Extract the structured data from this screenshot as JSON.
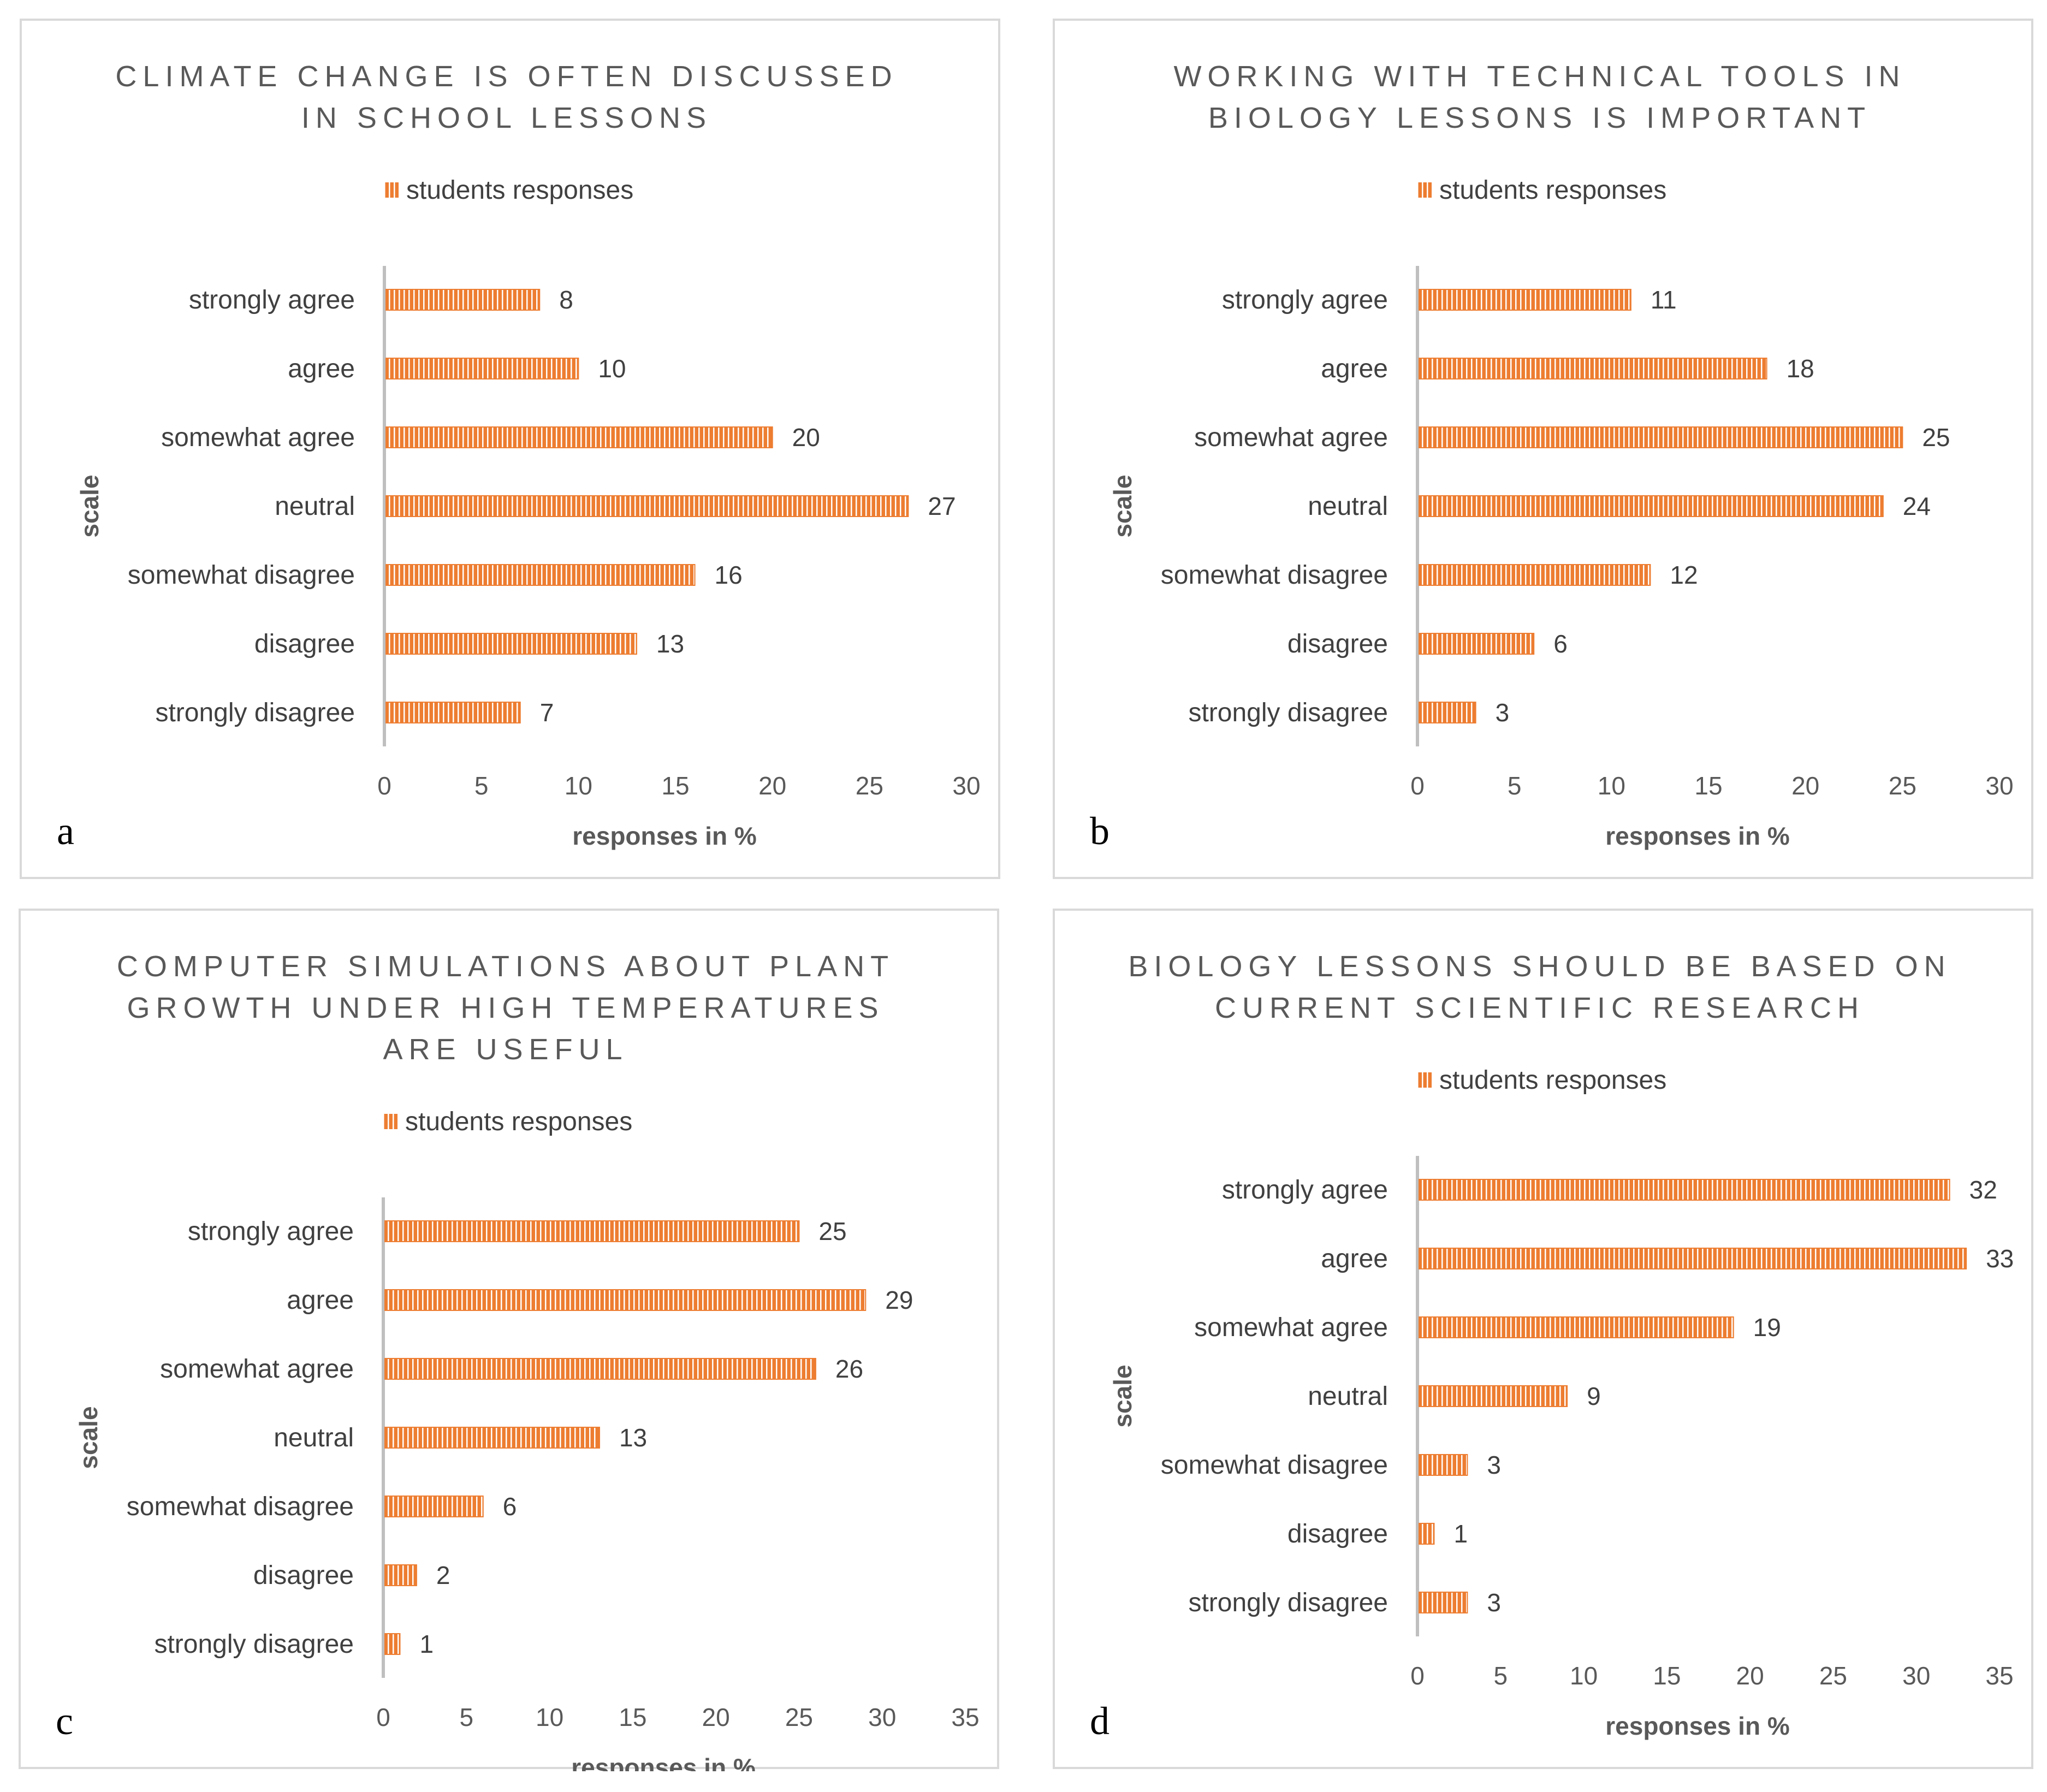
{
  "colors": {
    "bar": "#ED7D31",
    "bar_stripe": "#FFFFFF",
    "axis": "#BFBFBF",
    "border": "#D9D9D9"
  },
  "chart_data": [
    {
      "type": "bar",
      "orientation": "horizontal",
      "panel": "a",
      "title": [
        "CLIMATE CHANGE IS OFTEN DISCUSSED",
        "IN SCHOOL LESSONS"
      ],
      "legend": "students responses",
      "ylabel": "scale",
      "xlabel": "responses in %",
      "categories": [
        "strongly agree",
        "agree",
        "somewhat agree",
        "neutral",
        "somewhat disagree",
        "disagree",
        "strongly disagree"
      ],
      "series": [
        {
          "name": "students responses",
          "values": [
            8,
            10,
            20,
            27,
            16,
            13,
            7
          ]
        }
      ],
      "xlim": [
        0,
        30
      ],
      "xticks": [
        0,
        5,
        10,
        15,
        20,
        25,
        30
      ],
      "grid": false,
      "legend_position": "top"
    },
    {
      "type": "bar",
      "orientation": "horizontal",
      "panel": "b",
      "title": [
        "WORKING WITH TECHNICAL TOOLS IN",
        "BIOLOGY LESSONS IS IMPORTANT"
      ],
      "legend": "students responses",
      "ylabel": "scale",
      "xlabel": "responses in %",
      "categories": [
        "strongly agree",
        "agree",
        "somewhat agree",
        "neutral",
        "somewhat disagree",
        "disagree",
        "strongly disagree"
      ],
      "series": [
        {
          "name": "students responses",
          "values": [
            11,
            18,
            25,
            24,
            12,
            6,
            3
          ]
        }
      ],
      "xlim": [
        0,
        30
      ],
      "xticks": [
        0,
        5,
        10,
        15,
        20,
        25,
        30
      ],
      "grid": false,
      "legend_position": "top"
    },
    {
      "type": "bar",
      "orientation": "horizontal",
      "panel": "c",
      "title": [
        "COMPUTER SIMULATIONS ABOUT PLANT",
        "GROWTH UNDER HIGH TEMPERATURES",
        "ARE USEFUL"
      ],
      "legend": "students responses",
      "ylabel": "scale",
      "xlabel": "responses in %",
      "categories": [
        "strongly agree",
        "agree",
        "somewhat agree",
        "neutral",
        "somewhat disagree",
        "disagree",
        "strongly disagree"
      ],
      "series": [
        {
          "name": "students responses",
          "values": [
            25,
            29,
            26,
            13,
            6,
            2,
            1
          ]
        }
      ],
      "xlim": [
        0,
        35
      ],
      "xticks": [
        0,
        5,
        10,
        15,
        20,
        25,
        30,
        35
      ],
      "grid": false,
      "legend_position": "top"
    },
    {
      "type": "bar",
      "orientation": "horizontal",
      "panel": "d",
      "title": [
        "BIOLOGY LESSONS SHOULD BE BASED ON",
        "CURRENT SCIENTIFIC RESEARCH"
      ],
      "legend": "students responses",
      "ylabel": "scale",
      "xlabel": "responses in %",
      "categories": [
        "strongly agree",
        "agree",
        "somewhat agree",
        "neutral",
        "somewhat disagree",
        "disagree",
        "strongly disagree"
      ],
      "series": [
        {
          "name": "students responses",
          "values": [
            32,
            33,
            19,
            9,
            3,
            1,
            3
          ]
        }
      ],
      "xlim": [
        0,
        35
      ],
      "xticks": [
        0,
        5,
        10,
        15,
        20,
        25,
        30,
        35
      ],
      "grid": false,
      "legend_position": "top"
    }
  ]
}
